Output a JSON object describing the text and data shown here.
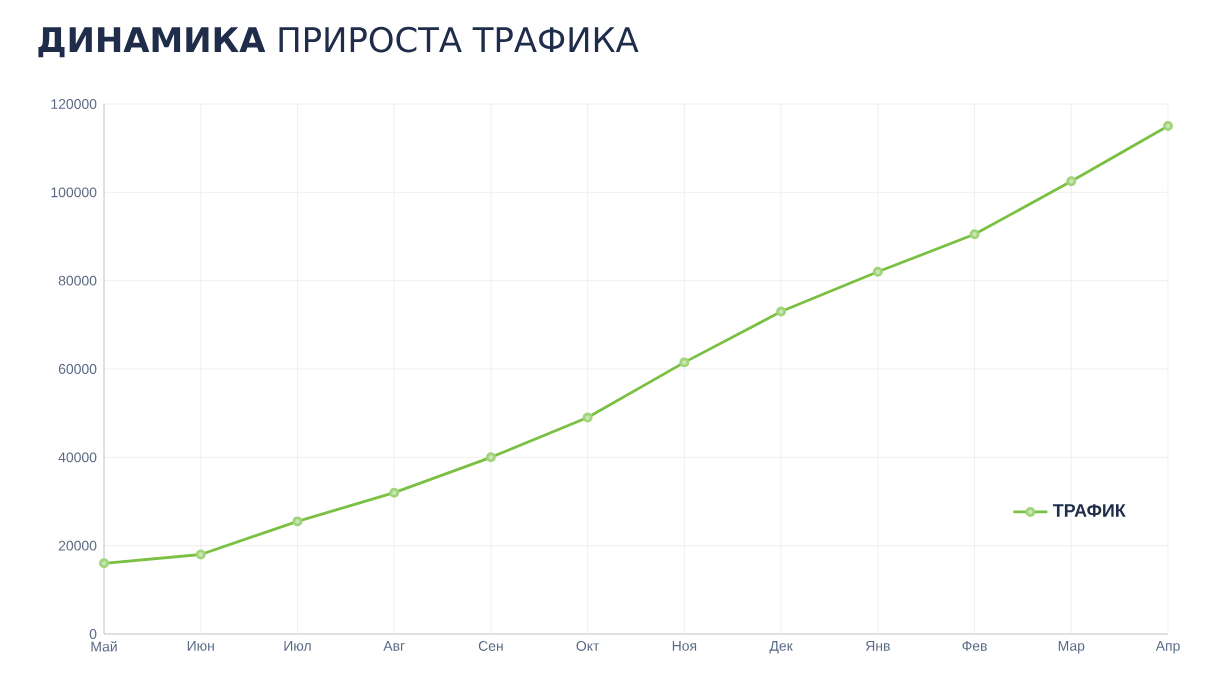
{
  "chart_data": {
    "type": "line",
    "title": "**ДИНАМИКА** ПРИРОСТА ТРАФИКА",
    "categories": [
      "Май",
      "Июн",
      "Июл",
      "Авг",
      "Сен",
      "Окт",
      "Ноя",
      "Дек",
      "Янв",
      "Фев",
      "Мар",
      "Апр"
    ],
    "series": [
      {
        "name": "ТРАФИК",
        "color": "#7ac143",
        "values": [
          16000,
          18000,
          25500,
          32000,
          40000,
          49000,
          61500,
          73000,
          82000,
          90500,
          102500,
          115000
        ]
      }
    ],
    "ylim": [
      0,
      120000
    ],
    "yticks": [
      0,
      20000,
      40000,
      60000,
      80000,
      100000,
      120000
    ],
    "grid": true,
    "legend": "bottom right",
    "marker": "circle",
    "line_style": "solid"
  }
}
